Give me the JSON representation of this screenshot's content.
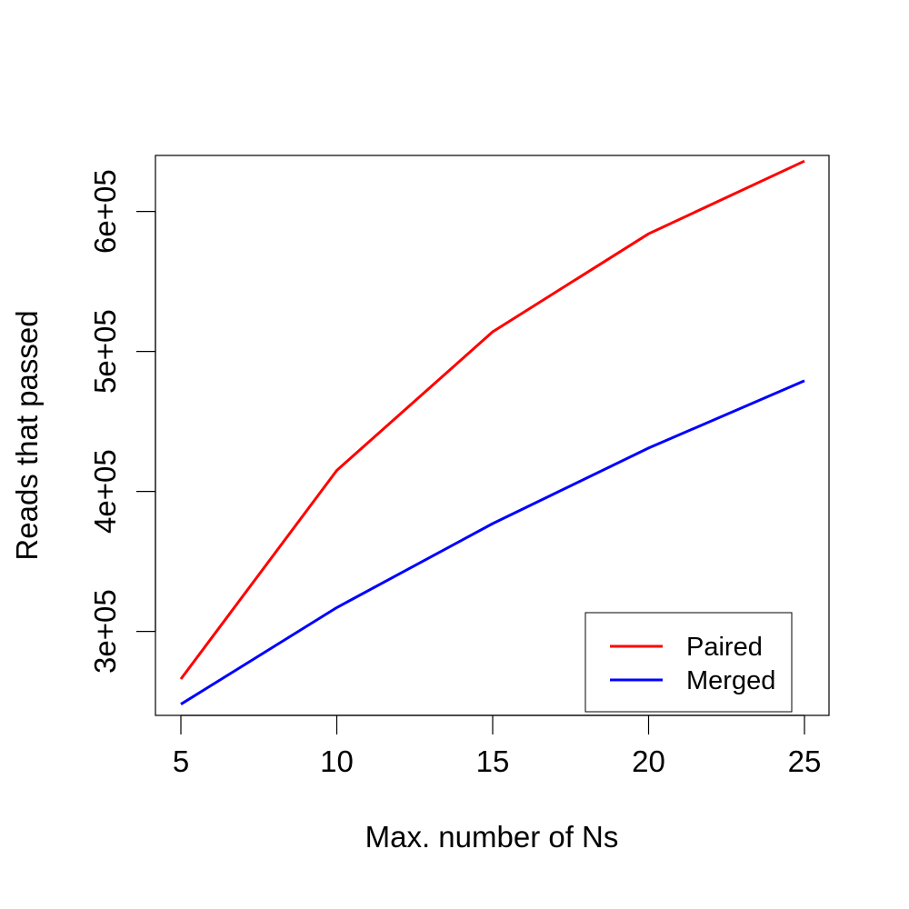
{
  "chart_data": {
    "type": "line",
    "title": "",
    "xlabel": "Max. number of Ns",
    "ylabel": "Reads that passed",
    "x": [
      5,
      10,
      15,
      20,
      25
    ],
    "xlim": [
      5,
      25
    ],
    "ylim": [
      240000,
      640000
    ],
    "x_ticks": [
      5,
      10,
      15,
      20,
      25
    ],
    "x_tick_labels": [
      "5",
      "10",
      "15",
      "20",
      "25"
    ],
    "y_ticks": [
      300000,
      400000,
      500000,
      600000
    ],
    "y_tick_labels": [
      "3e+05",
      "4e+05",
      "5e+05",
      "6e+05"
    ],
    "grid": false,
    "legend_position": "bottom-right",
    "series": [
      {
        "name": "Paired",
        "color": "#ff0000",
        "values": [
          266000,
          415000,
          514000,
          584000,
          636000
        ]
      },
      {
        "name": "Merged",
        "color": "#0000ff",
        "values": [
          248000,
          317000,
          377000,
          431000,
          479000
        ]
      }
    ]
  }
}
